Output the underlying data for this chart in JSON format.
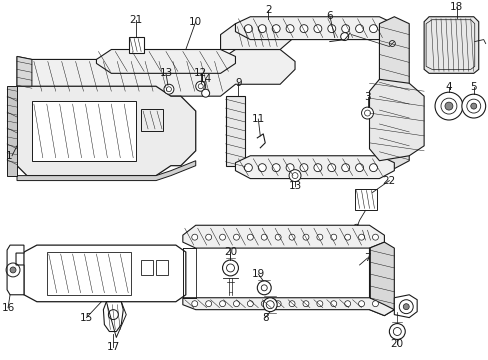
{
  "bg": "#ffffff",
  "lc": "#1a1a1a",
  "tc": "#1a1a1a",
  "figsize": [
    4.89,
    3.6
  ],
  "dpi": 100
}
